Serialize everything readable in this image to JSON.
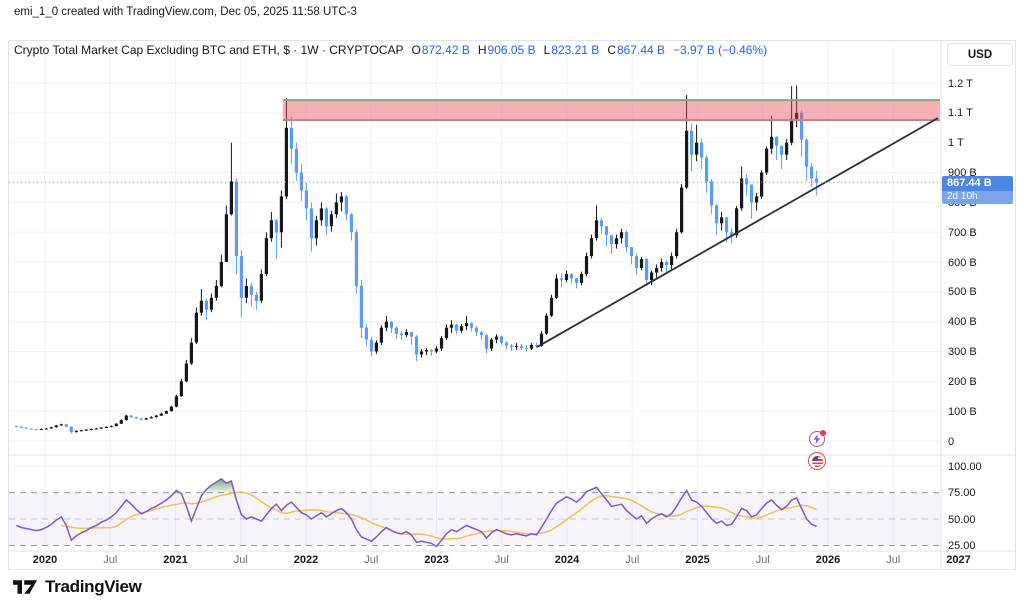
{
  "attribution": "emi_1_0 created with TradingView.com, Dec 05, 2025 11:58 UTC-3",
  "legend": {
    "title": "Crypto Total Market Cap Excluding BTC and ETH, $ · 1W · CRYPTOCAP",
    "ohlc": {
      "open_label": "O",
      "open": "872.42 B",
      "high_label": "H",
      "high": "906.05 B",
      "low_label": "L",
      "low": "823.21 B",
      "close_label": "C",
      "close": "867.44 B",
      "change": "−3.97 B (−0.46%)"
    }
  },
  "price_scale": {
    "currency_button": "USD",
    "price_label": "867.44 B",
    "countdown": "2d 10h"
  },
  "logo": {
    "text": "TradingView",
    "icon": "tradingview-mark-icon"
  },
  "event_markers": {
    "flash_icon": "lightning-event-icon",
    "flag_icon": "us-flag-event-icon"
  },
  "chart_data": {
    "type": "candlestick",
    "title": "Crypto Total Market Cap Excluding BTC and ETH",
    "timeframe": "1W",
    "unit": "billions USD",
    "last_price": 867.44,
    "t_start": 2019.78,
    "t_step": 0.03833,
    "first_open": 50,
    "value_axis": {
      "ticks": [
        {
          "v": 1200,
          "label": "1.2 T"
        },
        {
          "v": 1100,
          "label": "1.1 T"
        },
        {
          "v": 1000,
          "label": "1 T"
        },
        {
          "v": 900,
          "label": "900 B"
        },
        {
          "v": 800,
          "label": "800 B"
        },
        {
          "v": 700,
          "label": "700 B"
        },
        {
          "v": 600,
          "label": "600 B"
        },
        {
          "v": 500,
          "label": "500 B"
        },
        {
          "v": 400,
          "label": "400 B"
        },
        {
          "v": 300,
          "label": "300 B"
        },
        {
          "v": 200,
          "label": "200 B"
        },
        {
          "v": 100,
          "label": "100 B"
        },
        {
          "v": 0,
          "label": "0"
        }
      ]
    },
    "rsi_axis": {
      "ticks": [
        {
          "v": 100,
          "label": "100.00"
        },
        {
          "v": 75,
          "label": "75.00"
        },
        {
          "v": 50,
          "label": "50.00"
        },
        {
          "v": 25,
          "label": "25.00"
        }
      ],
      "band_upper": 75,
      "band_middle": 50,
      "band_lower": 25,
      "overbought": 75
    },
    "time_axis": {
      "ticks": [
        {
          "t": 2020,
          "label": "2020",
          "major": true
        },
        {
          "t": 2020.5,
          "label": "Jul",
          "major": false
        },
        {
          "t": 2021,
          "label": "2021",
          "major": true
        },
        {
          "t": 2021.5,
          "label": "Jul",
          "major": false
        },
        {
          "t": 2022,
          "label": "2022",
          "major": true
        },
        {
          "t": 2022.5,
          "label": "Jul",
          "major": false
        },
        {
          "t": 2023,
          "label": "2023",
          "major": true
        },
        {
          "t": 2023.5,
          "label": "Jul",
          "major": false
        },
        {
          "t": 2024,
          "label": "2024",
          "major": true
        },
        {
          "t": 2024.5,
          "label": "Jul",
          "major": false
        },
        {
          "t": 2025,
          "label": "2025",
          "major": true
        },
        {
          "t": 2025.5,
          "label": "Jul",
          "major": false
        },
        {
          "t": 2026,
          "label": "2026",
          "major": true
        },
        {
          "t": 2026.5,
          "label": "Jul",
          "major": false
        },
        {
          "t": 2027,
          "label": "2027",
          "major": true
        }
      ]
    },
    "zone": {
      "name": "resistance-zone",
      "t_start": 2021.823,
      "t_end": 2026.858,
      "value_top_b": 1143,
      "value_bottom_b": 1076
    },
    "trendline": {
      "name": "ascending-support-line",
      "t1": 2023.77,
      "v1_b": 315,
      "t2": 2026.843,
      "v2_b": 1083
    },
    "candles": [
      [
        52,
        46,
        48
      ],
      [
        49,
        43,
        45
      ],
      [
        46,
        41,
        42
      ],
      [
        43,
        38,
        40
      ],
      [
        41,
        36,
        38
      ],
      [
        42,
        37,
        40
      ],
      [
        44,
        39,
        42
      ],
      [
        48,
        41,
        46
      ],
      [
        54,
        45,
        52
      ],
      [
        58,
        51,
        56
      ],
      [
        57,
        46,
        48
      ],
      [
        49,
        25,
        30
      ],
      [
        36,
        28,
        34
      ],
      [
        38,
        32,
        36
      ],
      [
        40,
        34,
        38
      ],
      [
        42,
        36,
        40
      ],
      [
        44,
        39,
        42
      ],
      [
        47,
        41,
        45
      ],
      [
        49,
        44,
        47
      ],
      [
        52,
        46,
        50
      ],
      [
        60,
        49,
        58
      ],
      [
        73,
        57,
        70
      ],
      [
        88,
        69,
        85
      ],
      [
        87,
        77,
        80
      ],
      [
        82,
        73,
        76
      ],
      [
        78,
        69,
        72
      ],
      [
        78,
        71,
        76
      ],
      [
        83,
        75,
        80
      ],
      [
        88,
        79,
        85
      ],
      [
        95,
        84,
        92
      ],
      [
        103,
        91,
        100
      ],
      [
        118,
        99,
        115
      ],
      [
        155,
        113,
        150
      ],
      [
        208,
        148,
        200
      ],
      [
        272,
        196,
        260
      ],
      [
        345,
        255,
        330
      ],
      [
        448,
        325,
        430
      ],
      [
        510,
        420,
        470
      ],
      [
        478,
        405,
        440
      ],
      [
        495,
        432,
        480
      ],
      [
        540,
        470,
        520
      ],
      [
        625,
        515,
        600
      ],
      [
        790,
        660,
        760
      ],
      [
        1000,
        756,
        870
      ],
      [
        880,
        560,
        620
      ],
      [
        640,
        415,
        480
      ],
      [
        545,
        462,
        520
      ],
      [
        530,
        452,
        490
      ],
      [
        500,
        440,
        470
      ],
      [
        575,
        462,
        560
      ],
      [
        700,
        552,
        680
      ],
      [
        768,
        668,
        740
      ],
      [
        745,
        610,
        700
      ],
      [
        840,
        648,
        820
      ],
      [
        1150,
        812,
        1050
      ],
      [
        1085,
        930,
        980
      ],
      [
        1000,
        872,
        900
      ],
      [
        930,
        805,
        840
      ],
      [
        865,
        740,
        780
      ],
      [
        800,
        635,
        680
      ],
      [
        755,
        655,
        740
      ],
      [
        800,
        722,
        780
      ],
      [
        785,
        692,
        720
      ],
      [
        772,
        702,
        760
      ],
      [
        830,
        748,
        800
      ],
      [
        835,
        770,
        820
      ],
      [
        825,
        740,
        760
      ],
      [
        765,
        672,
        700
      ],
      [
        710,
        495,
        520
      ],
      [
        540,
        345,
        380
      ],
      [
        392,
        318,
        340
      ],
      [
        348,
        285,
        300
      ],
      [
        338,
        292,
        330
      ],
      [
        388,
        322,
        380
      ],
      [
        420,
        368,
        400
      ],
      [
        402,
        362,
        380
      ],
      [
        385,
        342,
        360
      ],
      [
        368,
        338,
        355
      ],
      [
        375,
        348,
        365
      ],
      [
        362,
        322,
        350
      ],
      [
        355,
        268,
        290
      ],
      [
        308,
        280,
        300
      ],
      [
        312,
        288,
        305
      ],
      [
        308,
        286,
        300
      ],
      [
        318,
        294,
        310
      ],
      [
        352,
        302,
        345
      ],
      [
        390,
        338,
        380
      ],
      [
        405,
        362,
        390
      ],
      [
        392,
        358,
        370
      ],
      [
        392,
        362,
        385
      ],
      [
        420,
        372,
        395
      ],
      [
        398,
        368,
        380
      ],
      [
        385,
        352,
        365
      ],
      [
        368,
        340,
        355
      ],
      [
        358,
        295,
        310
      ],
      [
        345,
        302,
        340
      ],
      [
        358,
        328,
        350
      ],
      [
        352,
        322,
        330
      ],
      [
        335,
        308,
        320
      ],
      [
        325,
        302,
        315
      ],
      [
        328,
        306,
        318
      ],
      [
        326,
        304,
        312
      ],
      [
        322,
        300,
        310
      ],
      [
        328,
        305,
        322
      ],
      [
        330,
        312,
        318
      ],
      [
        368,
        316,
        360
      ],
      [
        428,
        356,
        420
      ],
      [
        490,
        416,
        480
      ],
      [
        560,
        476,
        545
      ],
      [
        562,
        515,
        540
      ],
      [
        572,
        532,
        560
      ],
      [
        562,
        528,
        545
      ],
      [
        548,
        512,
        530
      ],
      [
        568,
        522,
        560
      ],
      [
        632,
        552,
        620
      ],
      [
        692,
        612,
        680
      ],
      [
        790,
        672,
        740
      ],
      [
        748,
        692,
        720
      ],
      [
        705,
        652,
        690
      ],
      [
        672,
        628,
        660
      ],
      [
        692,
        645,
        680
      ],
      [
        712,
        662,
        700
      ],
      [
        705,
        632,
        650
      ],
      [
        638,
        592,
        620
      ],
      [
        628,
        558,
        580
      ],
      [
        618,
        572,
        610
      ],
      [
        612,
        520,
        540
      ],
      [
        572,
        522,
        565
      ],
      [
        592,
        548,
        580
      ],
      [
        612,
        568,
        600
      ],
      [
        605,
        562,
        590
      ],
      [
        632,
        575,
        620
      ],
      [
        712,
        612,
        700
      ],
      [
        862,
        695,
        850
      ],
      [
        1160,
        845,
        1040
      ],
      [
        1065,
        905,
        960
      ],
      [
        1060,
        938,
        1000
      ],
      [
        1015,
        912,
        950
      ],
      [
        958,
        832,
        870
      ],
      [
        878,
        762,
        790
      ],
      [
        795,
        692,
        730
      ],
      [
        768,
        705,
        750
      ],
      [
        752,
        668,
        700
      ],
      [
        712,
        662,
        690
      ],
      [
        788,
        682,
        780
      ],
      [
        920,
        772,
        880
      ],
      [
        895,
        822,
        860
      ],
      [
        845,
        745,
        800
      ],
      [
        832,
        772,
        820
      ],
      [
        908,
        812,
        900
      ],
      [
        988,
        892,
        980
      ],
      [
        1090,
        962,
        1020
      ],
      [
        1022,
        942,
        990
      ],
      [
        978,
        912,
        960
      ],
      [
        1012,
        942,
        1000
      ],
      [
        1190,
        992,
        1080
      ],
      [
        1192,
        1052,
        1100
      ],
      [
        1108,
        952,
        1010
      ],
      [
        1015,
        872,
        920
      ],
      [
        932,
        852,
        880
      ],
      [
        906,
        823,
        867
      ]
    ],
    "rsi": [
      44,
      42,
      41,
      40,
      39,
      40,
      42,
      45,
      49,
      52,
      44,
      30,
      34,
      37,
      39,
      42,
      44,
      47,
      49,
      52,
      56,
      62,
      68,
      64,
      59,
      55,
      57,
      60,
      62,
      65,
      68,
      72,
      77,
      74,
      62,
      48,
      60,
      72,
      78,
      82,
      85,
      88,
      84,
      86,
      68,
      54,
      50,
      52,
      50,
      48,
      54,
      60,
      64,
      58,
      63,
      66,
      61,
      56,
      54,
      50,
      53,
      56,
      52,
      55,
      58,
      60,
      56,
      50,
      40,
      33,
      31,
      29,
      33,
      38,
      42,
      39,
      37,
      36,
      38,
      35,
      28,
      29,
      28,
      27,
      24,
      30,
      36,
      40,
      38,
      41,
      44,
      42,
      40,
      38,
      32,
      37,
      40,
      38,
      36,
      35,
      36,
      35,
      34,
      36,
      35,
      42,
      50,
      58,
      65,
      68,
      71,
      69,
      66,
      70,
      76,
      78,
      80,
      74,
      68,
      62,
      63,
      64,
      58,
      54,
      50,
      53,
      46,
      50,
      53,
      55,
      52,
      55,
      62,
      70,
      77,
      68,
      66,
      62,
      56,
      50,
      46,
      48,
      44,
      45,
      52,
      60,
      58,
      52,
      54,
      60,
      65,
      68,
      63,
      59,
      62,
      68,
      70,
      60,
      50,
      45,
      43
    ],
    "rsi_ma_window": 10,
    "colors": {
      "up": "#15171c",
      "down": "#5b9cf6",
      "accent_blue": "#2962ff",
      "rsi": "#7e57c2",
      "rsi_ma": "#e9c459",
      "zone_fill": "rgba(235,70,80,0.42)",
      "zone_border_top": "#8f9f7c",
      "zone_border_bottom": "#bd858a",
      "trendline": "#2a2e39",
      "grid": "#f0f3fa",
      "frame": "#e0e3eb",
      "band_fill": "rgba(126,87,194,0.07)",
      "band_line": "#969bab",
      "band_mid_line": "#c0c4cf",
      "overbought_fill": "#2e7d32",
      "price_line": "#5b9cf6"
    }
  }
}
